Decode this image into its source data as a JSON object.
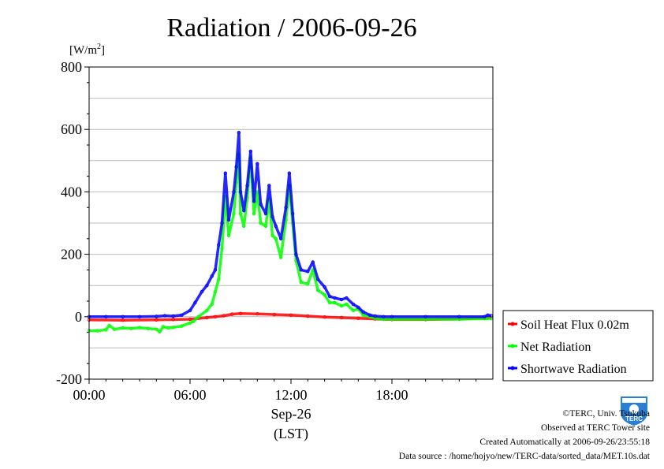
{
  "chart_data": {
    "type": "line",
    "title": "Radiation / 2006-09-26",
    "ylabel": "[W/m2]",
    "ylabel_parts": {
      "text": "[W/m",
      "sup": "2",
      "close": "]"
    },
    "xlabel_date": "Sep-26",
    "xlabel_tz": "(LST)",
    "x_ticks": [
      "00:00",
      "06:00",
      "12:00",
      "18:00"
    ],
    "y_ticks": [
      -200,
      0,
      200,
      400,
      600,
      800
    ],
    "xlim": [
      0,
      24
    ],
    "ylim": [
      -200,
      800
    ],
    "grid": true,
    "legend_position": "right",
    "series": [
      {
        "name": "Soil Heat Flux 0.02m",
        "color": "#ff0000",
        "x": [
          0,
          2,
          4,
          5,
          6,
          7,
          7.5,
          8,
          8.5,
          9,
          10,
          11,
          12,
          13,
          14,
          15,
          16,
          17,
          18,
          20,
          22,
          23.5,
          23.9
        ],
        "y": [
          -10,
          -11,
          -10,
          -9,
          -8,
          -3,
          0,
          3,
          8,
          10,
          9,
          7,
          5,
          2,
          -1,
          -3,
          -5,
          -7,
          -9,
          -9,
          -7,
          -4,
          -2
        ]
      },
      {
        "name": "Net Radiation",
        "color": "#00ff00",
        "x": [
          0,
          0.5,
          1,
          1.2,
          1.5,
          2,
          2.5,
          3,
          3.5,
          4,
          4.2,
          4.4,
          4.7,
          5,
          5.5,
          6,
          6.2,
          6.5,
          7,
          7.3,
          7.5,
          7.7,
          7.9,
          8.1,
          8.3,
          8.6,
          8.75,
          8.9,
          9.0,
          9.2,
          9.4,
          9.6,
          9.8,
          10.0,
          10.2,
          10.5,
          10.7,
          10.9,
          11.1,
          11.4,
          11.7,
          11.9,
          12.1,
          12.3,
          12.6,
          13.0,
          13.3,
          13.6,
          14.0,
          14.3,
          14.6,
          15.0,
          15.3,
          15.7,
          16.0,
          16.3,
          16.7,
          17.0,
          17.5,
          18.0,
          20.0,
          22.0,
          23.5,
          23.9
        ],
        "y": [
          -45,
          -45,
          -42,
          -28,
          -40,
          -36,
          -38,
          -35,
          -38,
          -40,
          -48,
          -32,
          -36,
          -34,
          -30,
          -20,
          -15,
          0,
          20,
          40,
          80,
          120,
          220,
          385,
          260,
          330,
          430,
          520,
          330,
          290,
          380,
          510,
          330,
          400,
          300,
          290,
          375,
          260,
          250,
          190,
          310,
          420,
          300,
          180,
          110,
          105,
          150,
          85,
          70,
          45,
          45,
          35,
          40,
          20,
          25,
          5,
          0,
          -5,
          -8,
          -8,
          -8,
          -8,
          -6,
          -6
        ]
      },
      {
        "name": "Shortwave Radiation",
        "color": "#0000ff",
        "x": [
          0,
          1,
          2,
          3,
          4,
          4.5,
          5,
          5.5,
          6,
          6.3,
          6.7,
          7.0,
          7.3,
          7.5,
          7.7,
          7.9,
          8.1,
          8.3,
          8.6,
          8.75,
          8.9,
          9.0,
          9.2,
          9.4,
          9.6,
          9.8,
          10.0,
          10.2,
          10.5,
          10.7,
          10.9,
          11.1,
          11.4,
          11.7,
          11.9,
          12.1,
          12.3,
          12.6,
          13.0,
          13.3,
          13.6,
          14.0,
          14.3,
          14.6,
          15.0,
          15.3,
          15.7,
          16.0,
          16.3,
          16.7,
          17.0,
          17.5,
          18.0,
          20.0,
          22.0,
          23.5,
          23.7,
          23.9
        ],
        "y": [
          0,
          0,
          0,
          0,
          1,
          3,
          2,
          5,
          20,
          45,
          80,
          100,
          130,
          150,
          230,
          300,
          460,
          310,
          400,
          480,
          590,
          400,
          340,
          420,
          530,
          370,
          490,
          360,
          330,
          420,
          320,
          290,
          250,
          350,
          460,
          330,
          200,
          150,
          145,
          175,
          120,
          95,
          65,
          60,
          55,
          60,
          40,
          30,
          15,
          5,
          2,
          0,
          0,
          0,
          0,
          0,
          5,
          3
        ]
      }
    ]
  },
  "footer": {
    "copyright": "©TERC, Univ. Tsukuba",
    "observed": "Observed at TERC Tower site",
    "created": "Created Automatically at 2006-09-26/23:55:18",
    "source": "Data source : /home/hojyo/new/TERC-data/sorted_data/MET.10s.dat"
  },
  "logo": {
    "text": "TERC",
    "icon": "terc-logo-icon",
    "color": "#2a7fd4"
  }
}
